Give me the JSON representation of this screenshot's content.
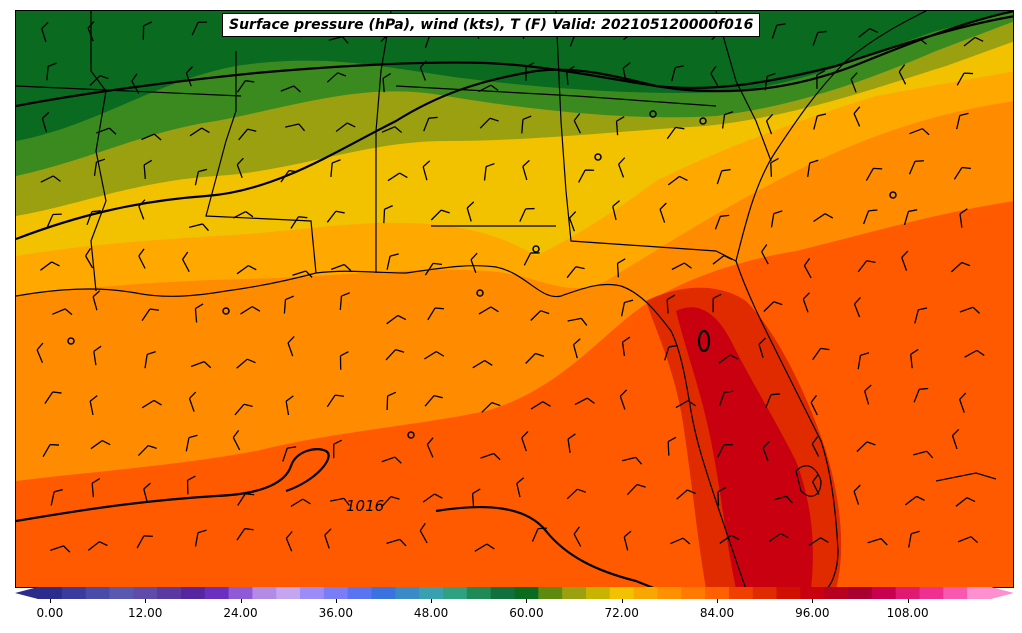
{
  "title": "Surface pressure (hPa), wind (kts), T (F) Valid: 202105120000f016",
  "isobar_label": "1016",
  "colorbar": {
    "ticks": [
      "0.00",
      "12.00",
      "24.00",
      "36.00",
      "48.00",
      "60.00",
      "72.00",
      "84.00",
      "96.00",
      "108.00"
    ],
    "colors": [
      "#2b2c8c",
      "#3a3b9c",
      "#4a4aa8",
      "#5a59b0",
      "#5e4ca8",
      "#5a3aa0",
      "#5426a0",
      "#6b2fc0",
      "#8f5ad6",
      "#b28be6",
      "#c5a4f0",
      "#9c8cf8",
      "#7a7df5",
      "#5a73f0",
      "#3a73e0",
      "#3a8ac8",
      "#3aa0b0",
      "#2fa080",
      "#1f8a58",
      "#12703e",
      "#0a6a20",
      "#5e8a10",
      "#9aa010",
      "#c8b400",
      "#f2c200",
      "#f8a600",
      "#ff9000",
      "#ff7a00",
      "#ff6000",
      "#f04000",
      "#e02a00",
      "#d01000",
      "#c80010",
      "#b80020",
      "#a80030",
      "#c80050",
      "#e01a70",
      "#f03090",
      "#f858b0",
      "#ff90d0"
    ]
  },
  "legend_colors": {
    "dark_green": "#0a6a20",
    "green": "#3a8a20",
    "olive": "#9aa010",
    "yellow": "#f2c200",
    "light_orange": "#ffa800",
    "orange": "#ff8c00",
    "dark_orange": "#ff5a00",
    "red": "#e02a00",
    "dark_red": "#c80010"
  }
}
